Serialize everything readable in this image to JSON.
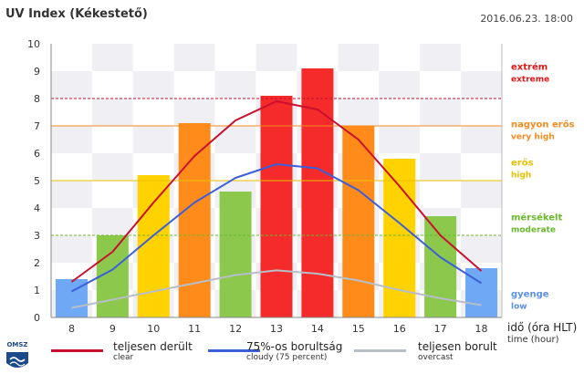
{
  "header": {
    "title": "UV Index (Kékestető)",
    "datetime": "2016.06.23. 18:00"
  },
  "logo": {
    "text": "OMSZ"
  },
  "x_unit": {
    "main": "idő (óra HLT)",
    "sub": "time (hour)"
  },
  "legend": [
    {
      "main": "teljesen derült",
      "sub": "clear",
      "color": "#c8102e"
    },
    {
      "main": "75%-os borultság",
      "sub": "cloudy (75 percent)",
      "color": "#3b5fd9"
    },
    {
      "main": "teljesen borult",
      "sub": "overcast",
      "color": "#b8bec8"
    }
  ],
  "levels": [
    {
      "main": "extrém",
      "sub": "extreme",
      "color": "#e01818",
      "threshold": 8
    },
    {
      "main": "nagyon erős",
      "sub": "very high",
      "color": "#f58a1f",
      "threshold": 7
    },
    {
      "main": "erős",
      "sub": "high",
      "color": "#e8c000",
      "threshold": 5
    },
    {
      "main": "mérsékelt",
      "sub": "moderate",
      "color": "#6ab82e",
      "threshold": 3
    },
    {
      "main": "gyenge",
      "sub": "low",
      "color": "#5b8fe8",
      "threshold": 0
    }
  ],
  "chart_data": {
    "type": "bar",
    "categories": [
      "8",
      "9",
      "10",
      "11",
      "12",
      "13",
      "14",
      "15",
      "16",
      "17",
      "18"
    ],
    "values": [
      1.4,
      3.0,
      5.2,
      7.1,
      4.6,
      8.1,
      9.1,
      7.0,
      5.8,
      3.7,
      1.8
    ],
    "bar_colors": [
      "#6fa8f5",
      "#8cc84b",
      "#ffd200",
      "#ff8c1a",
      "#8cc84b",
      "#f52a2a",
      "#f52a2a",
      "#ff8c1a",
      "#ffd200",
      "#8cc84b",
      "#6fa8f5"
    ],
    "ylim": [
      0,
      10
    ],
    "yticks": [
      "0",
      "1",
      "2",
      "3",
      "4",
      "5",
      "6",
      "7",
      "8",
      "9",
      "10"
    ],
    "series": [
      {
        "name": "teljesen derült",
        "color": "#c8102e",
        "values": [
          1.3,
          2.4,
          4.2,
          5.9,
          7.2,
          7.9,
          7.6,
          6.5,
          4.8,
          3.0,
          1.7
        ]
      },
      {
        "name": "75%-os borultság",
        "color": "#3b5fd9",
        "values": [
          0.95,
          1.75,
          3.0,
          4.2,
          5.1,
          5.6,
          5.45,
          4.65,
          3.45,
          2.2,
          1.25
        ]
      },
      {
        "name": "teljesen borult",
        "color": "#b8bec8",
        "values": [
          0.35,
          0.65,
          0.95,
          1.25,
          1.55,
          1.72,
          1.6,
          1.35,
          1.0,
          0.7,
          0.45
        ]
      }
    ],
    "level_lines": [
      {
        "value": 8,
        "color": "#c8102e",
        "style": "dashed"
      },
      {
        "value": 7,
        "color": "#f58a1f",
        "style": "solid"
      },
      {
        "value": 5,
        "color": "#e8c000",
        "style": "solid"
      },
      {
        "value": 3,
        "color": "#6ab82e",
        "style": "dashed"
      }
    ]
  }
}
